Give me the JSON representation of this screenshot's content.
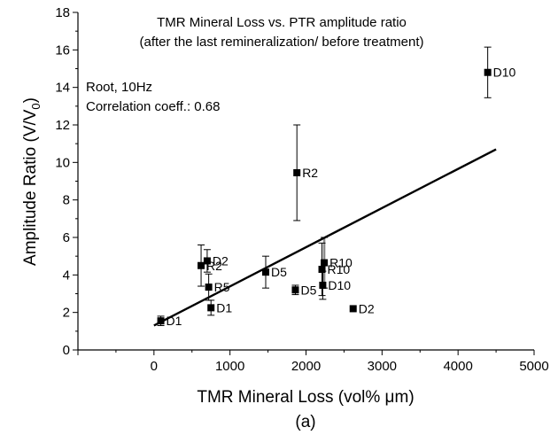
{
  "chart_data": {
    "type": "scatter",
    "title": "TMR Mineral Loss vs. PTR amplitude ratio",
    "subtitle": "(after the last remineralization/ before treatment)",
    "annotations": [
      "Root, 10Hz",
      "Correlation coeff.: 0.68"
    ],
    "xlabel": "TMR Mineral Loss (vol% μm)",
    "ylabel": "Amplitude Ratio (V/V",
    "ylabel_sub": "0",
    "ylabel_close": ")",
    "caption": "(a)",
    "xlim": [
      -1000,
      5000
    ],
    "ylim": [
      0,
      18
    ],
    "xticks": [
      0,
      1000,
      2000,
      3000,
      4000,
      5000
    ],
    "yticks": [
      0,
      2,
      4,
      6,
      8,
      10,
      12,
      14,
      16,
      18
    ],
    "points": [
      {
        "label": "D1",
        "x": 90,
        "y": 1.55,
        "err": 0.25,
        "err_color": "#000000",
        "label_pos": "right"
      },
      {
        "label": "D1",
        "x": 750,
        "y": 2.25,
        "err": 0.4,
        "err_color": "#000000",
        "label_pos": "right"
      },
      {
        "label": "R5",
        "x": 720,
        "y": 3.35,
        "err": 0.7,
        "err_color": "#000000",
        "label_pos": "right"
      },
      {
        "label": "R2",
        "x": 620,
        "y": 4.5,
        "err": 1.1,
        "err_color": "#000000",
        "label_pos": "right"
      },
      {
        "label": "D2",
        "x": 700,
        "y": 4.75,
        "err": 0.6,
        "err_color": "#000000",
        "label_pos": "right"
      },
      {
        "label": "D5",
        "x": 1470,
        "y": 4.15,
        "err": 0.85,
        "err_color": "#000000",
        "label_pos": "right"
      },
      {
        "label": "D5",
        "x": 1860,
        "y": 3.2,
        "err": 0.25,
        "err_color": "#000000",
        "label_pos": "right"
      },
      {
        "label": "R2",
        "x": 1880,
        "y": 9.45,
        "err": 2.55,
        "err_color": "#000000",
        "label_pos": "right"
      },
      {
        "label": "R10",
        "x": 2240,
        "y": 4.65,
        "err": 1.35,
        "err_color": "#8a8a8a",
        "label_pos": "right"
      },
      {
        "label": "R10",
        "x": 2210,
        "y": 4.3,
        "err": 1.4,
        "err_color": "#000000",
        "label_pos": "right"
      },
      {
        "label": "D10",
        "x": 2220,
        "y": 3.45,
        "err": 0.75,
        "err_color": "#000000",
        "label_pos": "right"
      },
      {
        "label": "D2",
        "x": 2620,
        "y": 2.2,
        "err": 0.0,
        "err_color": "#000000",
        "label_pos": "right"
      },
      {
        "label": "D10",
        "x": 4390,
        "y": 14.8,
        "err": 1.35,
        "err_color": "#000000",
        "label_pos": "right"
      }
    ],
    "fit_line": {
      "x": [
        0,
        4500
      ],
      "y": [
        1.3,
        10.7
      ]
    }
  }
}
